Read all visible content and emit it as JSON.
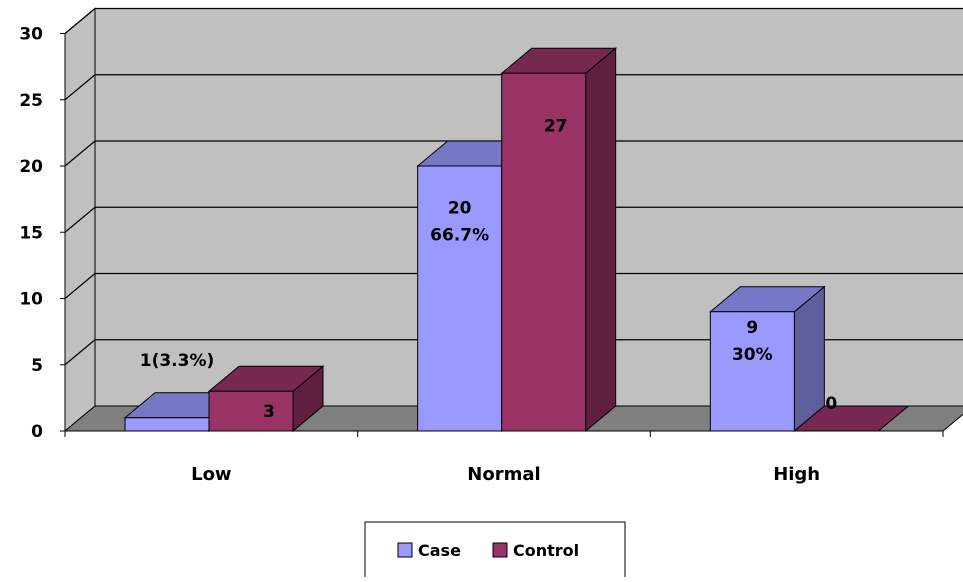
{
  "chart_data": {
    "type": "bar",
    "categories": [
      "Low",
      "Normal",
      "High"
    ],
    "series": [
      {
        "name": "Case",
        "values": [
          1,
          20,
          9
        ],
        "color": "#9999FF",
        "labels": [
          [
            "1(3.3%)"
          ],
          [
            "20",
            "66.7%"
          ],
          [
            "9",
            "30%"
          ]
        ]
      },
      {
        "name": "Control",
        "values": [
          3,
          27,
          0
        ],
        "color": "#993366",
        "labels": [
          [
            "3"
          ],
          [
            "27"
          ],
          [
            "0"
          ]
        ]
      }
    ],
    "ylim": [
      0,
      30
    ],
    "yticks": [
      "0",
      "5",
      "10",
      "15",
      "20",
      "25",
      "30"
    ],
    "grid": true,
    "legend": "bottom-center",
    "style": "3d-clustered-column",
    "wall_color": "#C0C0C0",
    "floor_color": "#808080"
  }
}
